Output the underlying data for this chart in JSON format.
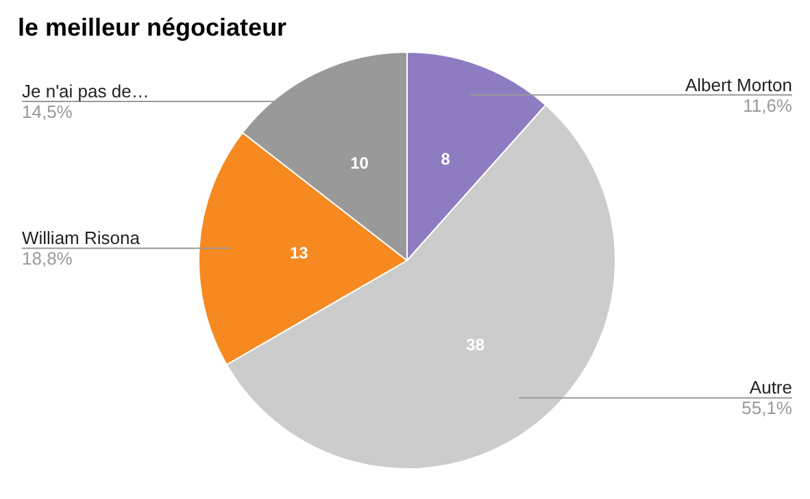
{
  "chart_data": {
    "type": "pie",
    "title": "le meilleur négociateur",
    "categories": [
      "Albert Morton",
      "Autre",
      "William Risona",
      "Je n'ai pas de…"
    ],
    "values": [
      8,
      38,
      13,
      10
    ],
    "colors": [
      "#8e7cc3",
      "#cccccc",
      "#f6891f",
      "#999999"
    ],
    "data_labels": true,
    "annotations": [
      "11,6%",
      "55,1%",
      "18,8%",
      "14,5%"
    ]
  }
}
